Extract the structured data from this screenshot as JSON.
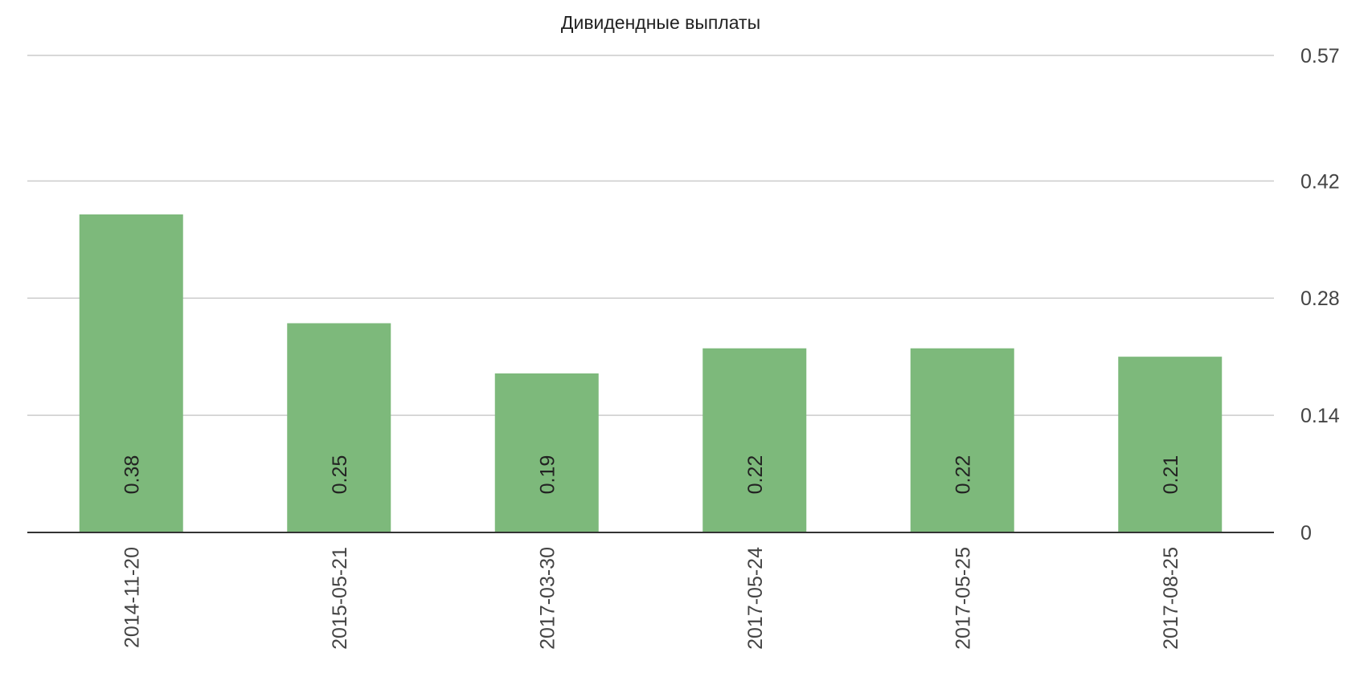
{
  "chart_data": {
    "type": "bar",
    "title": "Дивидендные выплаты",
    "categories": [
      "2014-11-20",
      "2015-05-21",
      "2017-03-30",
      "2017-05-24",
      "2017-05-25",
      "2017-08-25"
    ],
    "values": [
      0.38,
      0.25,
      0.19,
      0.22,
      0.22,
      0.21
    ],
    "data_labels": [
      "0.38",
      "0.25",
      "0.19",
      "0.22",
      "0.22",
      "0.21"
    ],
    "xlabel": "",
    "ylabel": "",
    "ylim": [
      0,
      0.57
    ],
    "y_ticks": [
      0,
      0.14,
      0.28,
      0.42,
      0.57
    ],
    "y_tick_labels": [
      "0",
      "0.14",
      "0.28",
      "0.42",
      "0.57"
    ],
    "y_axis_side": "right",
    "x_label_orientation": "vertical",
    "data_label_orientation": "vertical",
    "grid": true,
    "legend": "none",
    "bar_color": "#7db97b"
  }
}
